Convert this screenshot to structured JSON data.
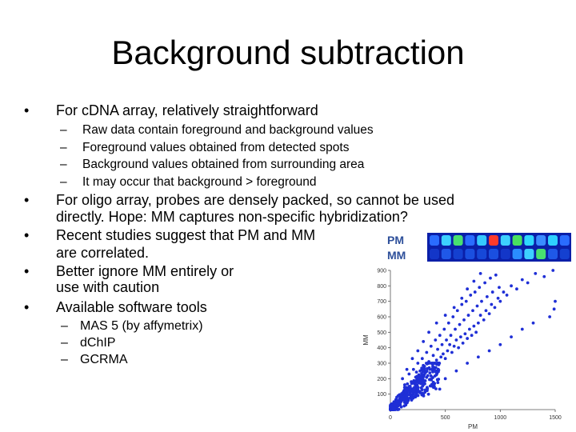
{
  "slide": {
    "title": "Background subtraction",
    "bullets": [
      {
        "text": "For cDNA array, relatively straightforward"
      },
      {
        "lines": [
          "For oligo array, probes are densely packed, so cannot be used",
          "directly. Hope: MM captures non-specific hybridization?"
        ]
      },
      {
        "lines": [
          "Recent studies suggest that PM and MM",
          "are correlated."
        ]
      },
      {
        "lines": [
          "Better ignore MM entirely or",
          "use with caution"
        ]
      },
      {
        "text": "Available software tools"
      }
    ],
    "cdna_subitems": [
      "Raw data contain foreground and background values",
      "Foreground values obtained from detected spots",
      "Background values obtained from surrounding area",
      "It may occur that background > foreground"
    ],
    "tools": [
      "MAS 5 (by affymetrix)",
      "dChIP",
      "GCRMA"
    ],
    "bullet_glyph": "•",
    "dash_glyph": "–"
  },
  "probe_strip": {
    "labels": [
      "PM",
      "MM"
    ],
    "label_color": "#2d4f9a"
  },
  "chart_data": {
    "type": "scatter",
    "xlabel": "PM",
    "ylabel": "MM",
    "xticks": [
      "0",
      "500",
      "1000",
      "1500"
    ],
    "yticks": [
      "100",
      "200",
      "300",
      "400",
      "500",
      "600",
      "700",
      "800",
      "900"
    ],
    "xlim": [
      0,
      1500
    ],
    "ylim": [
      0,
      900
    ],
    "color": "#1f2fd6",
    "points": [
      [
        40,
        30
      ],
      [
        60,
        55
      ],
      [
        80,
        45
      ],
      [
        95,
        90
      ],
      [
        120,
        70
      ],
      [
        140,
        110
      ],
      [
        160,
        95
      ],
      [
        180,
        140
      ],
      [
        200,
        120
      ],
      [
        220,
        170
      ],
      [
        240,
        150
      ],
      [
        260,
        190
      ],
      [
        280,
        210
      ],
      [
        300,
        180
      ],
      [
        320,
        240
      ],
      [
        340,
        220
      ],
      [
        360,
        260
      ],
      [
        380,
        300
      ],
      [
        400,
        270
      ],
      [
        420,
        320
      ],
      [
        440,
        290
      ],
      [
        460,
        340
      ],
      [
        480,
        360
      ],
      [
        500,
        330
      ],
      [
        520,
        380
      ],
      [
        540,
        420
      ],
      [
        560,
        370
      ],
      [
        580,
        410
      ],
      [
        600,
        450
      ],
      [
        620,
        400
      ],
      [
        640,
        470
      ],
      [
        660,
        430
      ],
      [
        680,
        490
      ],
      [
        700,
        460
      ],
      [
        720,
        520
      ],
      [
        740,
        480
      ],
      [
        760,
        540
      ],
      [
        780,
        500
      ],
      [
        800,
        560
      ],
      [
        820,
        610
      ],
      [
        850,
        580
      ],
      [
        870,
        640
      ],
      [
        900,
        620
      ],
      [
        920,
        680
      ],
      [
        950,
        660
      ],
      [
        980,
        720
      ],
      [
        1000,
        700
      ],
      [
        1030,
        760
      ],
      [
        1060,
        740
      ],
      [
        1100,
        800
      ],
      [
        1150,
        780
      ],
      [
        1200,
        840
      ],
      [
        1250,
        820
      ],
      [
        1320,
        880
      ],
      [
        1400,
        860
      ],
      [
        1480,
        900
      ],
      [
        150,
        260
      ],
      [
        200,
        330
      ],
      [
        250,
        380
      ],
      [
        300,
        440
      ],
      [
        350,
        500
      ],
      [
        420,
        560
      ],
      [
        500,
        610
      ],
      [
        580,
        660
      ],
      [
        650,
        720
      ],
      [
        700,
        780
      ],
      [
        760,
        830
      ],
      [
        820,
        880
      ],
      [
        300,
        100
      ],
      [
        400,
        150
      ],
      [
        500,
        200
      ],
      [
        600,
        250
      ],
      [
        700,
        300
      ],
      [
        800,
        340
      ],
      [
        900,
        380
      ],
      [
        1000,
        420
      ],
      [
        1100,
        470
      ],
      [
        1200,
        520
      ],
      [
        1300,
        560
      ],
      [
        1450,
        600
      ],
      [
        1490,
        650
      ],
      [
        1500,
        700
      ],
      [
        110,
        200
      ],
      [
        130,
        160
      ],
      [
        170,
        230
      ],
      [
        190,
        180
      ],
      [
        210,
        260
      ],
      [
        230,
        210
      ],
      [
        250,
        300
      ],
      [
        270,
        250
      ],
      [
        290,
        330
      ],
      [
        310,
        280
      ],
      [
        330,
        370
      ],
      [
        350,
        310
      ],
      [
        370,
        410
      ],
      [
        390,
        350
      ],
      [
        410,
        450
      ],
      [
        430,
        390
      ],
      [
        450,
        480
      ],
      [
        470,
        420
      ],
      [
        490,
        520
      ],
      [
        510,
        450
      ],
      [
        530,
        560
      ],
      [
        550,
        480
      ],
      [
        570,
        600
      ],
      [
        590,
        520
      ],
      [
        610,
        640
      ],
      [
        630,
        550
      ],
      [
        650,
        680
      ],
      [
        670,
        580
      ],
      [
        690,
        700
      ],
      [
        710,
        610
      ],
      [
        730,
        740
      ],
      [
        750,
        640
      ],
      [
        770,
        760
      ],
      [
        790,
        670
      ],
      [
        810,
        790
      ],
      [
        830,
        700
      ],
      [
        860,
        820
      ],
      [
        880,
        730
      ],
      [
        910,
        850
      ],
      [
        930,
        760
      ],
      [
        960,
        870
      ],
      [
        990,
        790
      ]
    ],
    "dense_cluster": {
      "x_range": [
        0,
        450
      ],
      "y_range": [
        0,
        300
      ]
    }
  }
}
